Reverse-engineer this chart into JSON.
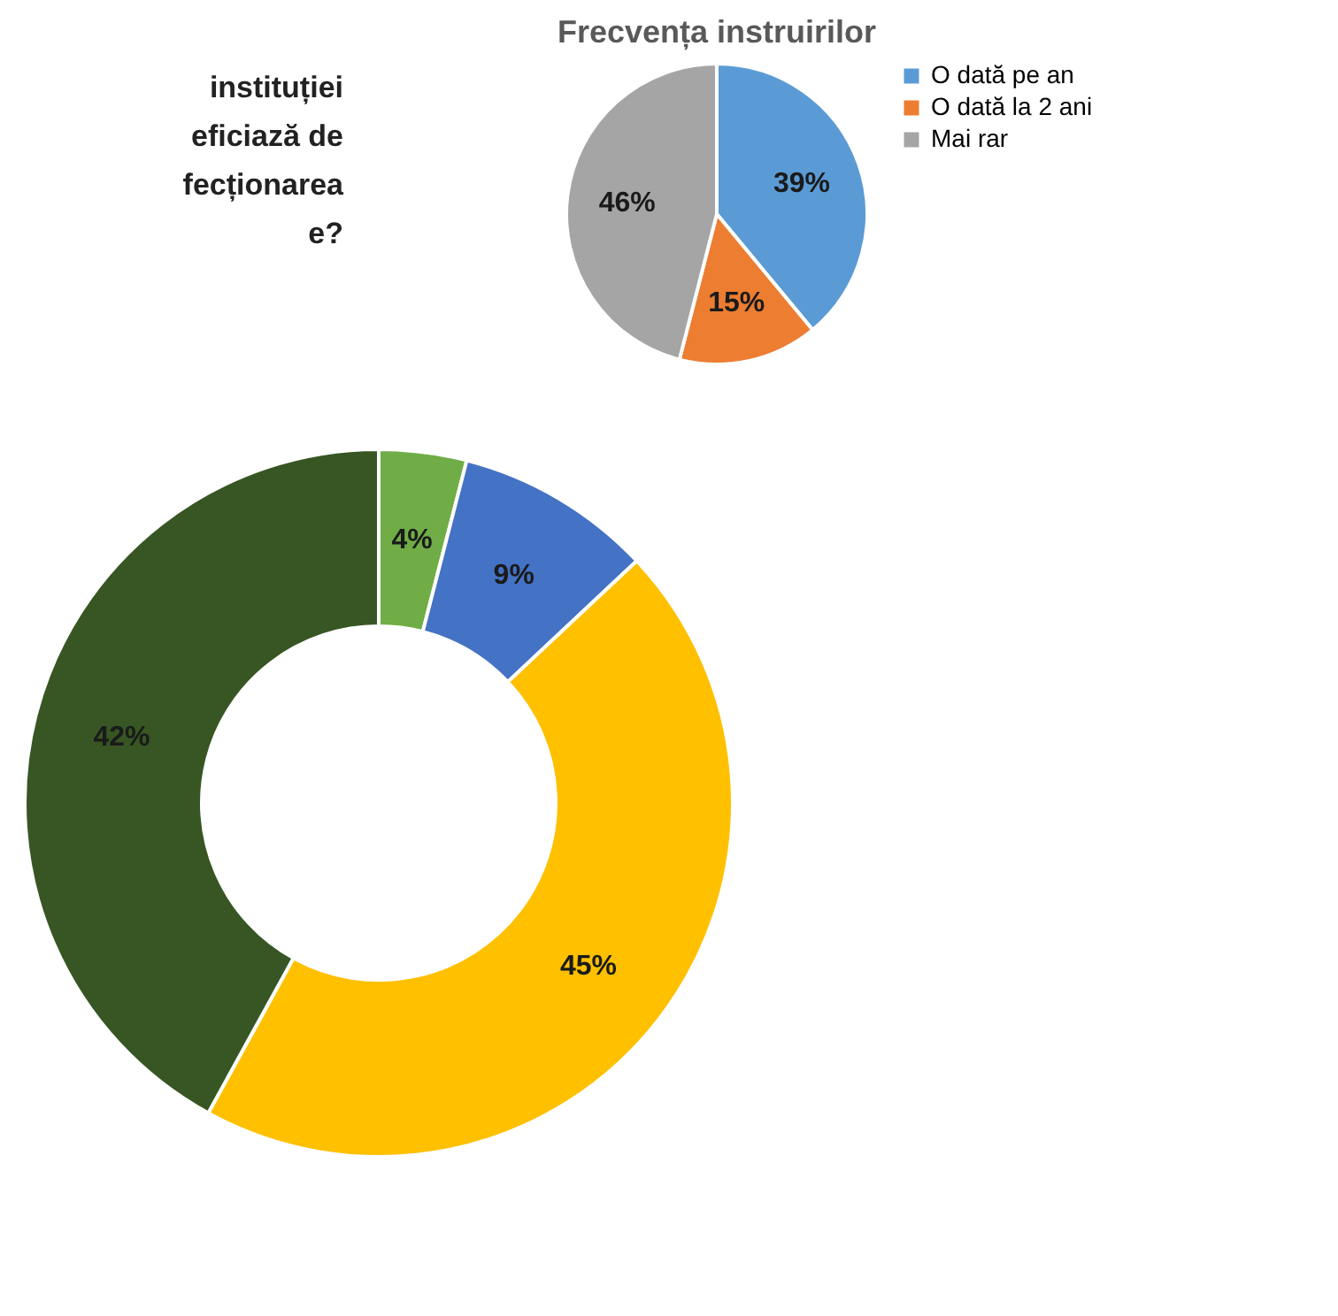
{
  "chart_data": [
    {
      "type": "donut",
      "categories": [
        null,
        null,
        null,
        null
      ],
      "values": [
        4,
        9,
        45,
        42
      ],
      "colors": [
        "#70ad47",
        "#4472c4",
        "#ffc000",
        "#375623"
      ],
      "value_labels": [
        "4%",
        "9%",
        "45%",
        "42%"
      ],
      "legend": false,
      "annotations": [
        "instituției",
        "eficiază de",
        "fecționarea",
        "e?"
      ]
    },
    {
      "type": "pie",
      "title": "Frecvența instruirilor",
      "categories": [
        "O dată pe an",
        "O dată la 2 ani",
        "Mai rar"
      ],
      "values": [
        39,
        15,
        46
      ],
      "colors": [
        "#5b9bd5",
        "#ed7d31",
        "#a5a5a5"
      ],
      "value_labels": [
        "39%",
        "15%",
        "46%"
      ],
      "legend": "right"
    }
  ]
}
